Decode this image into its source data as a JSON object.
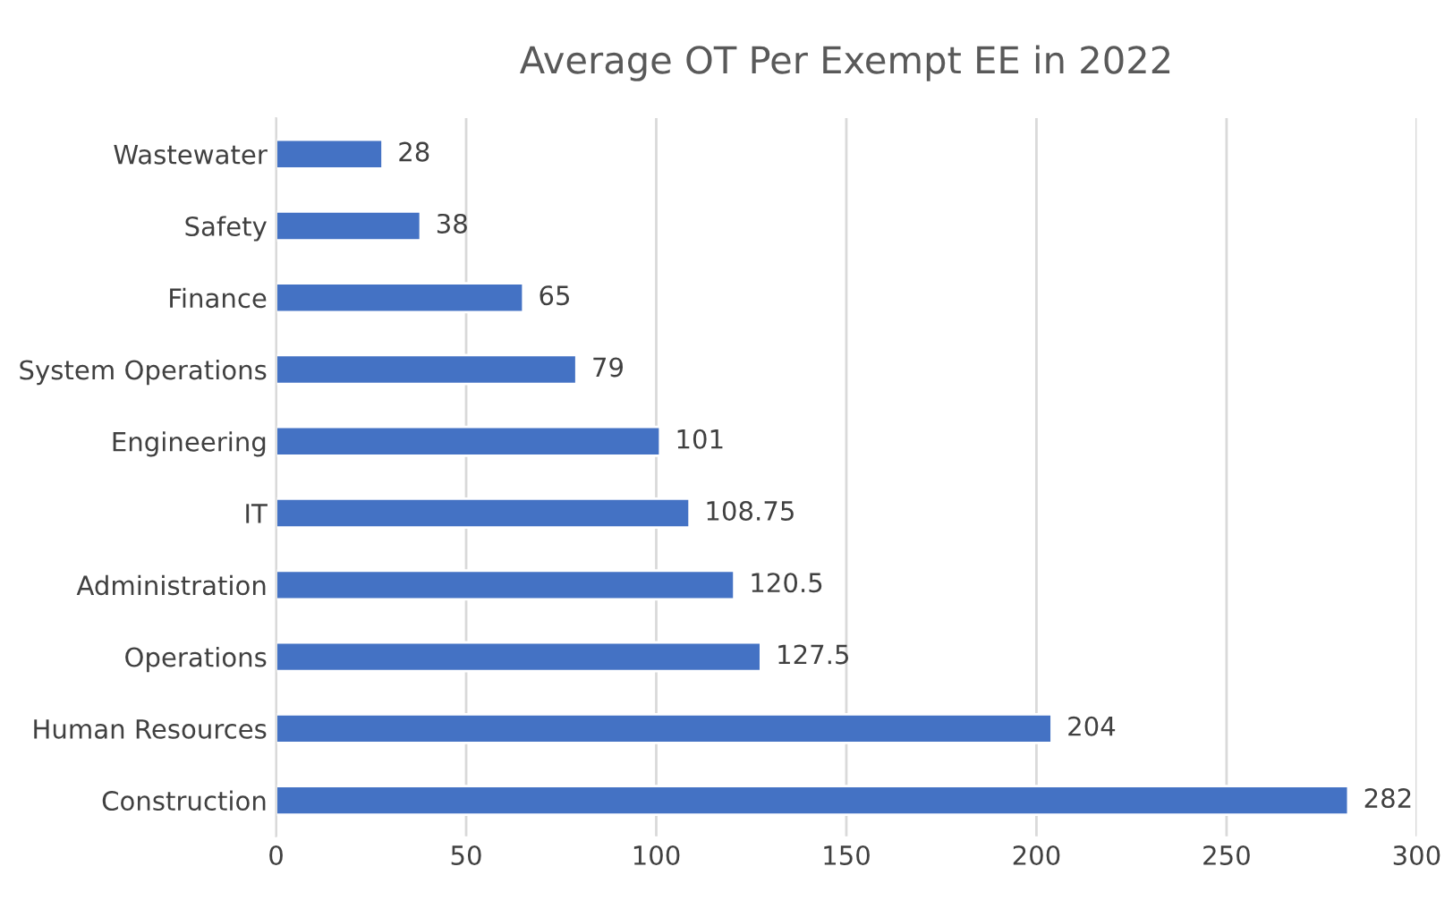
{
  "chart_data": {
    "type": "bar",
    "orientation": "horizontal",
    "title": "Average OT Per Exempt EE in 2022",
    "categories": [
      "Wastewater",
      "Safety",
      "Finance",
      "System Operations",
      "Engineering",
      "IT",
      "Administration",
      "Operations",
      "Human Resources",
      "Construction"
    ],
    "values": [
      28,
      38,
      65,
      79,
      101,
      108.75,
      120.5,
      127.5,
      204,
      282
    ],
    "color": "#4472c4",
    "xlim": [
      0,
      300
    ],
    "xticks": [
      0,
      50,
      100,
      150,
      200,
      250,
      300
    ],
    "grid": "x",
    "data_labels": true
  }
}
